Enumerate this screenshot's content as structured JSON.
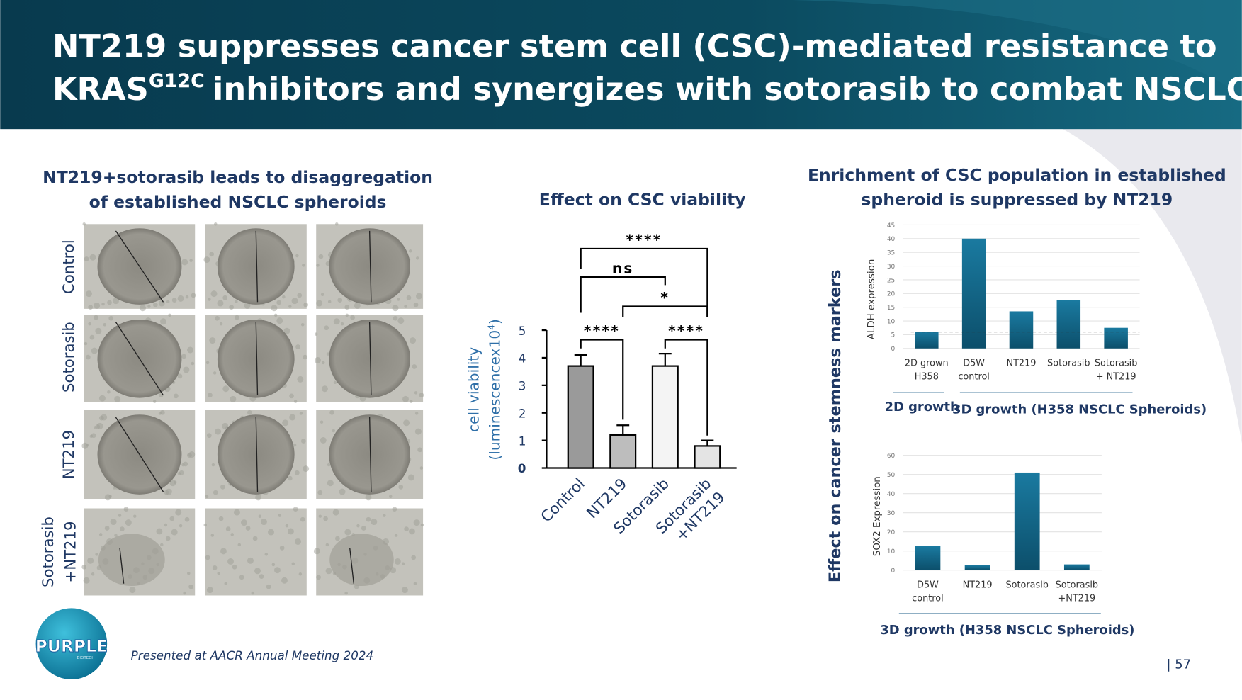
{
  "slide": {
    "title_line1": "NT219 suppresses cancer stem cell (CSC)-mediated resistance to",
    "title_line2_start": "KRAS",
    "title_sup": "G12C",
    "title_line2_end": "inhibitors and synergizes with sotorasib to combat NSCLC",
    "footer": "Presented at AACR Annual Meeting 2024",
    "page": "| 57",
    "logo": "PURPLE",
    "logo_sub": "BIOTECH"
  },
  "spheroids": {
    "title": "NT219+sotorasib leads to disaggregation\nof established NSCLC spheroids",
    "rows": [
      "Control",
      "Sotorasib",
      "NT219",
      "Sotorasib\n+NT219"
    ]
  },
  "stemness": {
    "title": "Enrichment of CSC population in established\nspheroid is suppressed by NT219",
    "axis_label": "Effect on cancer stemness markers"
  },
  "chart_data": [
    {
      "type": "bar",
      "title": "Effect on CSC viability",
      "ylabel": "cell viability",
      "ylabel2": "(luminescencex10",
      "ylabel_sup": "4",
      "ylabel_end": ")",
      "categories": [
        "Control",
        "NT219",
        "Sotorasib",
        "Sotorasib\n+NT219"
      ],
      "values": [
        3.7,
        1.2,
        3.7,
        0.8
      ],
      "errors": [
        0.4,
        0.35,
        0.45,
        0.2
      ],
      "colors": [
        "#9a9a9a",
        "#bdbdbd",
        "#f4f4f4",
        "#e4e4e4"
      ],
      "ylim": [
        0,
        5
      ],
      "yticks": [
        0,
        1,
        2,
        3,
        4,
        5
      ],
      "annotations": [
        "****",
        "ns",
        "*",
        "****",
        "****"
      ]
    },
    {
      "type": "bar",
      "ylabel": "ALDH expression",
      "categories": [
        "2D grown\nH358",
        "D5W\ncontrol",
        "NT219",
        "Sotorasib",
        "Sotorasib\n+ NT219"
      ],
      "values": [
        6,
        40,
        13.5,
        17.5,
        7.5
      ],
      "reference_line": 6,
      "color": "#16698a",
      "ylim": [
        0,
        45
      ],
      "yticks": [
        0,
        5,
        10,
        15,
        20,
        25,
        30,
        35,
        40,
        45
      ],
      "grid": true,
      "groups": [
        "2D growth",
        "3D growth (H358 NSCLC Spheroids)"
      ]
    },
    {
      "type": "bar",
      "ylabel": "SOX2 Expression",
      "categories": [
        "D5W\ncontrol",
        "NT219",
        "Sotorasib",
        "Sotorasib\n+NT219"
      ],
      "values": [
        12.5,
        2.5,
        51,
        3
      ],
      "color": "#16698a",
      "ylim": [
        0,
        60
      ],
      "yticks": [
        0,
        10,
        20,
        30,
        40,
        50,
        60
      ],
      "grid": true,
      "groups": [
        "3D growth (H358 NSCLC Spheroids)"
      ]
    }
  ]
}
